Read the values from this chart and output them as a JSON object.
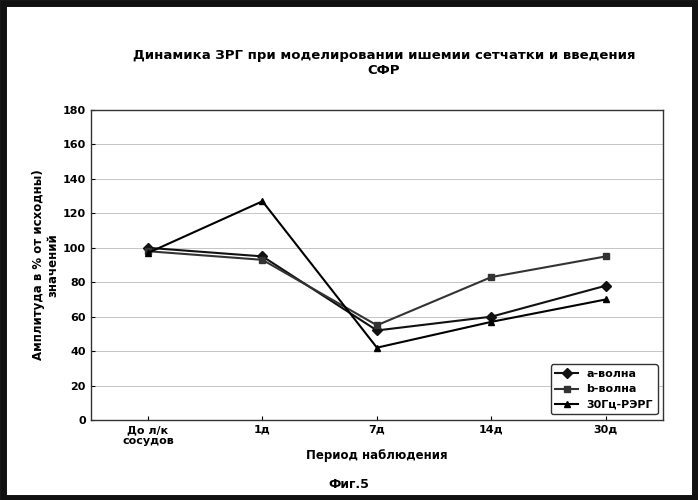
{
  "title_line1": "Динамика ЗРГ при моделировании ишемии сетчатки и введения",
  "title_line2": "СФР",
  "xlabel": "Период наблюдения",
  "ylabel": "Амплитуда в % от исходны)\nзначений",
  "caption": "Фиг.5",
  "x_labels": [
    "До л/к\nсосудов",
    "1д",
    "7д",
    "14д",
    "30д"
  ],
  "x_values": [
    0,
    1,
    2,
    3,
    4
  ],
  "series": {
    "a-волна": {
      "values": [
        100,
        95,
        52,
        60,
        78
      ],
      "color": "#111111",
      "marker": "D",
      "linestyle": "-"
    },
    "b-волна": {
      "values": [
        98,
        93,
        55,
        83,
        95
      ],
      "color": "#333333",
      "marker": "s",
      "linestyle": "-"
    },
    "30Гц-РЭРГ": {
      "values": [
        97,
        127,
        42,
        57,
        70
      ],
      "color": "#000000",
      "marker": "^",
      "linestyle": "-"
    }
  },
  "ylim": [
    0,
    180
  ],
  "yticks": [
    0,
    20,
    40,
    60,
    80,
    100,
    120,
    140,
    160,
    180
  ],
  "background_color": "#ffffff",
  "plot_bg_color": "#ffffff",
  "grid_color": "#bbbbbb",
  "title_fontsize": 9.5,
  "axis_label_fontsize": 8.5,
  "tick_fontsize": 8,
  "legend_fontsize": 8,
  "outer_border_color": "#111111",
  "outer_border_lw": 5
}
